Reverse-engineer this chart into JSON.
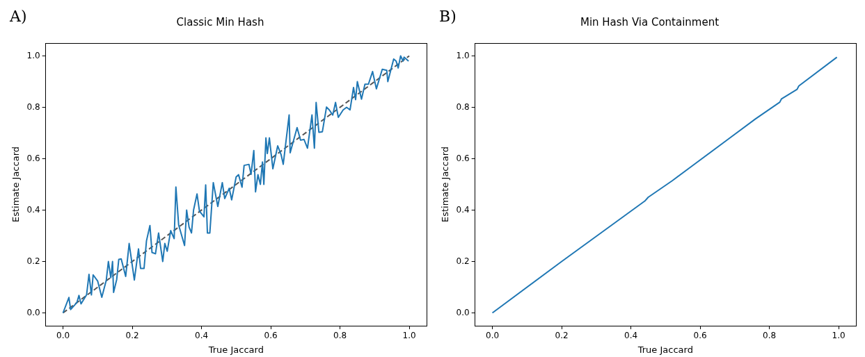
{
  "chart_data": [
    {
      "type": "line",
      "title": "Classic Min Hash",
      "xlabel": "True Jaccard",
      "ylabel": "Estimate Jaccard",
      "annotations": [
        "A)"
      ],
      "xlim": [
        -0.05,
        1.05
      ],
      "ylim": [
        -0.05,
        1.05
      ],
      "xticks": [
        {
          "value": 0,
          "label": "0.0"
        },
        {
          "value": 0.2,
          "label": "0.2"
        },
        {
          "value": 0.4,
          "label": "0.4"
        },
        {
          "value": 0.6,
          "label": "0.6"
        },
        {
          "value": 0.8,
          "label": "0.8"
        },
        {
          "value": 1,
          "label": "1.0"
        }
      ],
      "yticks": [
        {
          "value": 0,
          "label": "0.0"
        },
        {
          "value": 0.2,
          "label": "0.2"
        },
        {
          "value": 0.4,
          "label": "0.4"
        },
        {
          "value": 0.6,
          "label": "0.6"
        },
        {
          "value": 0.8,
          "label": "0.8"
        },
        {
          "value": 1,
          "label": "1.0"
        }
      ],
      "grid": false,
      "legend": false,
      "series": [
        {
          "color": "#1f77b4",
          "line_style": "solid",
          "x": [
            0,
            0.017,
            0.022,
            0.04,
            0.046,
            0.052,
            0.068,
            0.075,
            0.082,
            0.087,
            0.1,
            0.112,
            0.125,
            0.131,
            0.138,
            0.143,
            0.146,
            0.155,
            0.161,
            0.168,
            0.181,
            0.191,
            0.206,
            0.218,
            0.224,
            0.234,
            0.241,
            0.251,
            0.257,
            0.267,
            0.276,
            0.288,
            0.294,
            0.301,
            0.311,
            0.321,
            0.326,
            0.334,
            0.351,
            0.357,
            0.364,
            0.371,
            0.377,
            0.387,
            0.394,
            0.407,
            0.412,
            0.417,
            0.424,
            0.434,
            0.447,
            0.46,
            0.467,
            0.48,
            0.487,
            0.5,
            0.507,
            0.517,
            0.523,
            0.537,
            0.543,
            0.551,
            0.556,
            0.563,
            0.57,
            0.576,
            0.58,
            0.586,
            0.59,
            0.596,
            0.606,
            0.62,
            0.63,
            0.636,
            0.653,
            0.656,
            0.676,
            0.686,
            0.696,
            0.706,
            0.719,
            0.726,
            0.731,
            0.739,
            0.749,
            0.761,
            0.769,
            0.779,
            0.787,
            0.795,
            0.809,
            0.819,
            0.829,
            0.839,
            0.845,
            0.85,
            0.862,
            0.872,
            0.882,
            0.894,
            0.905,
            0.922,
            0.935,
            0.938,
            0.955,
            0.962,
            0.968,
            0.975,
            0.982,
            0.985,
            0.998
          ],
          "values": [
            0,
            0.06,
            0.013,
            0.04,
            0.068,
            0.035,
            0.07,
            0.15,
            0.07,
            0.148,
            0.124,
            0.061,
            0.128,
            0.2,
            0.137,
            0.2,
            0.08,
            0.13,
            0.208,
            0.21,
            0.142,
            0.27,
            0.128,
            0.249,
            0.173,
            0.173,
            0.28,
            0.34,
            0.235,
            0.23,
            0.311,
            0.2,
            0.27,
            0.24,
            0.32,
            0.289,
            0.49,
            0.342,
            0.262,
            0.4,
            0.334,
            0.311,
            0.4,
            0.463,
            0.396,
            0.374,
            0.498,
            0.311,
            0.311,
            0.507,
            0.414,
            0.507,
            0.445,
            0.485,
            0.44,
            0.529,
            0.538,
            0.489,
            0.574,
            0.578,
            0.539,
            0.632,
            0.471,
            0.538,
            0.5,
            0.587,
            0.5,
            0.681,
            0.62,
            0.681,
            0.561,
            0.65,
            0.615,
            0.578,
            0.77,
            0.623,
            0.721,
            0.672,
            0.675,
            0.641,
            0.77,
            0.641,
            0.819,
            0.703,
            0.705,
            0.801,
            0.79,
            0.77,
            0.819,
            0.761,
            0.79,
            0.8,
            0.79,
            0.877,
            0.83,
            0.9,
            0.832,
            0.89,
            0.89,
            0.939,
            0.872,
            0.948,
            0.944,
            0.9,
            0.988,
            0.98,
            0.953,
            1.0,
            0.98,
            0.995,
            0.98
          ]
        },
        {
          "color": "#555555",
          "line_style": "dashed",
          "x": [
            0,
            1
          ],
          "values": [
            0,
            1
          ]
        }
      ]
    },
    {
      "type": "line",
      "title": "Min Hash Via Containment",
      "xlabel": "True Jaccard",
      "ylabel": "Estimate Jaccard",
      "annotations": [
        "B)"
      ],
      "xlim": [
        -0.05,
        1.05
      ],
      "ylim": [
        -0.05,
        1.05
      ],
      "xticks": [
        {
          "value": 0,
          "label": "0.0"
        },
        {
          "value": 0.2,
          "label": "0.2"
        },
        {
          "value": 0.4,
          "label": "0.4"
        },
        {
          "value": 0.6,
          "label": "0.6"
        },
        {
          "value": 0.8,
          "label": "0.8"
        },
        {
          "value": 1,
          "label": "1.0"
        }
      ],
      "yticks": [
        {
          "value": 0,
          "label": "0.0"
        },
        {
          "value": 0.2,
          "label": "0.2"
        },
        {
          "value": 0.4,
          "label": "0.4"
        },
        {
          "value": 0.6,
          "label": "0.6"
        },
        {
          "value": 0.8,
          "label": "0.8"
        },
        {
          "value": 1,
          "label": "1.0"
        }
      ],
      "grid": false,
      "legend": false,
      "series": [
        {
          "color": "#1f77b4",
          "line_style": "solid",
          "x": [
            0,
            0.2,
            0.44,
            0.45,
            0.52,
            0.58,
            0.68,
            0.76,
            0.83,
            0.835,
            0.88,
            0.885,
            0.995
          ],
          "values": [
            0,
            0.2,
            0.435,
            0.45,
            0.515,
            0.575,
            0.675,
            0.755,
            0.82,
            0.833,
            0.87,
            0.883,
            0.995
          ]
        }
      ]
    }
  ]
}
